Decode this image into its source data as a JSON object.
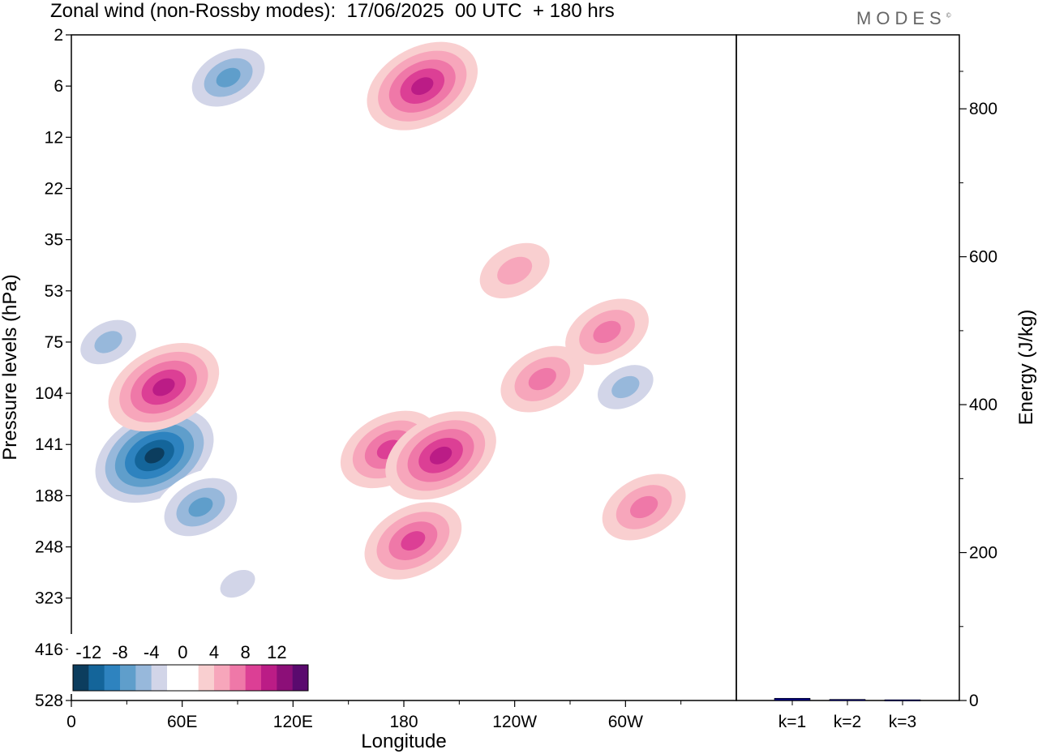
{
  "header": {
    "title": "Zonal wind (non-Rossby modes):  17/06/2025  00 UTC  + 180 hrs",
    "logo": "MODES"
  },
  "chart_data": [
    {
      "type": "heatmap",
      "title": "Zonal wind (non-Rossby modes):  17/06/2025  00 UTC  + 180 hrs",
      "xlabel": "Longitude",
      "ylabel": "Pressure levels (hPa)",
      "x_ticks": [
        "0",
        "60E",
        "120E",
        "180",
        "120W",
        "60W"
      ],
      "y_ticks": [
        "2",
        "6",
        "12",
        "22",
        "35",
        "53",
        "75",
        "104",
        "141",
        "188",
        "248",
        "323",
        "416",
        "528"
      ],
      "colorbar": {
        "tick_labels": [
          "-12",
          "-8",
          "-4",
          "0",
          "4",
          "8",
          "12"
        ],
        "levels": [
          -14,
          -12,
          -10,
          -8,
          -6,
          -4,
          -2,
          2,
          4,
          6,
          8,
          10,
          12,
          14
        ],
        "colors": [
          "#0c3d5e",
          "#14659a",
          "#2e83bf",
          "#5f9ecb",
          "#97b8db",
          "#d2d5e8",
          "#ffffff",
          "#ffffff",
          "#f9cfd0",
          "#f7a6bb",
          "#ef78a8",
          "#dc3f95",
          "#bb1c86",
          "#8c0f78",
          "#5a0a6e"
        ]
      },
      "features": [
        {
          "type": "negative",
          "lon": 45,
          "pres": 150,
          "peak": -14
        },
        {
          "type": "negative",
          "lon": 70,
          "pres": 200,
          "peak": -8
        },
        {
          "type": "negative",
          "lon": 90,
          "pres": 300,
          "peak": -4
        },
        {
          "type": "positive",
          "lon": 50,
          "pres": 100,
          "peak": 9
        },
        {
          "type": "positive",
          "lon": 172,
          "pres": 145,
          "peak": 8
        },
        {
          "type": "positive",
          "lon": 200,
          "pres": 150,
          "peak": 10
        },
        {
          "type": "positive",
          "lon": 185,
          "pres": 240,
          "peak": 7
        },
        {
          "type": "positive",
          "lon": 255,
          "pres": 95,
          "peak": 6
        },
        {
          "type": "positive",
          "lon": 290,
          "pres": 70,
          "peak": 6
        },
        {
          "type": "positive",
          "lon": 190,
          "pres": 6,
          "peak": 9
        },
        {
          "type": "negative",
          "lon": 85,
          "pres": 5,
          "peak": -7
        },
        {
          "type": "negative",
          "lon": 300,
          "pres": 100,
          "peak": -6
        },
        {
          "type": "positive",
          "lon": 310,
          "pres": 200,
          "peak": 5
        },
        {
          "type": "negative",
          "lon": 20,
          "pres": 75,
          "peak": -5
        },
        {
          "type": "positive",
          "lon": 240,
          "pres": 45,
          "peak": 3
        }
      ]
    },
    {
      "type": "bar",
      "ylabel": "Energy (J/kg)",
      "categories": [
        "k=1",
        "k=2",
        "k=3"
      ],
      "values": [
        3,
        1.5,
        1
      ],
      "ylim": [
        0,
        900
      ],
      "y_ticks": [
        0,
        200,
        400,
        600,
        800
      ],
      "bar_color": "#000080"
    }
  ]
}
